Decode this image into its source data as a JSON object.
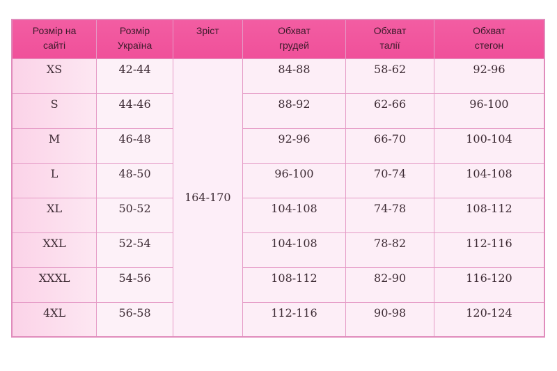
{
  "headers": [
    [
      "Розмір на",
      "сайті"
    ],
    [
      "Розмір",
      "Україна"
    ],
    [
      "Зріст",
      ""
    ],
    [
      "Обхват",
      "грудей"
    ],
    [
      "Обхват",
      "талії"
    ],
    [
      "Обхват",
      "стегон"
    ]
  ],
  "height": "164-170",
  "rows": [
    {
      "size": "XS",
      "ua": "42-44",
      "chest": "84-88",
      "waist": "58-62",
      "hips": "92-96"
    },
    {
      "size": "S",
      "ua": "44-46",
      "chest": "88-92",
      "waist": "62-66",
      "hips": "96-100"
    },
    {
      "size": "M",
      "ua": "46-48",
      "chest": "92-96",
      "waist": "66-70",
      "hips": "100-104"
    },
    {
      "size": "L",
      "ua": "48-50",
      "chest": "96-100",
      "waist": "70-74",
      "hips": "104-108"
    },
    {
      "size": "XL",
      "ua": "50-52",
      "chest": "104-108",
      "waist": "74-78",
      "hips": "108-112"
    },
    {
      "size": "XXL",
      "ua": "52-54",
      "chest": "104-108",
      "waist": "78-82",
      "hips": "112-116"
    },
    {
      "size": "XXXL",
      "ua": "54-56",
      "chest": "108-112",
      "waist": "82-90",
      "hips": "116-120"
    },
    {
      "size": "4XL",
      "ua": "56-58",
      "chest": "112-116",
      "waist": "90-98",
      "hips": "120-124"
    }
  ],
  "colors": {
    "header": "#f0559a",
    "border": "#e59ac6",
    "first_column": "#fbd3e8",
    "cell": "#fdeef7"
  }
}
